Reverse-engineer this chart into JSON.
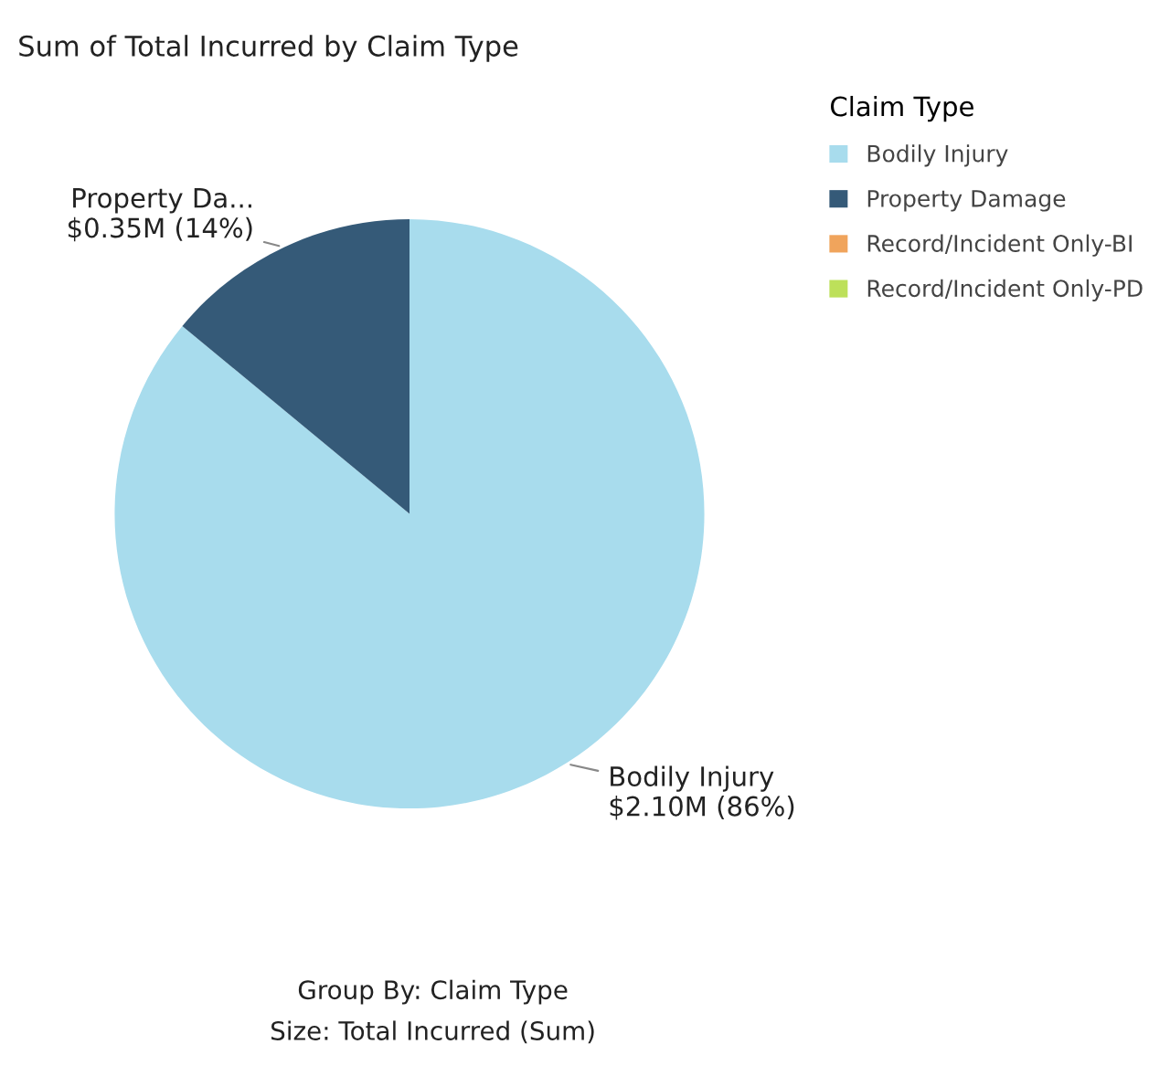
{
  "chart_data": {
    "type": "pie",
    "title": "Sum of Total Incurred by Claim Type",
    "legend_title": "Claim Type",
    "legend": "top right",
    "categories": [
      "Bodily Injury",
      "Property Damage",
      "Record/Incident Only-BI",
      "Record/Incident Only-PD"
    ],
    "values": [
      86,
      14,
      0,
      0
    ],
    "colors": [
      "#a8dced",
      "#355a78",
      "#f0a45c",
      "#bde05a"
    ],
    "value_labels": [
      "Bodily Injury\n$2.10M (86%)",
      "Property Da...\n$0.35M (14%)",
      null,
      null
    ],
    "annotations": [
      "Group By: Claim Type",
      "Size: Total Incurred (Sum)"
    ]
  }
}
